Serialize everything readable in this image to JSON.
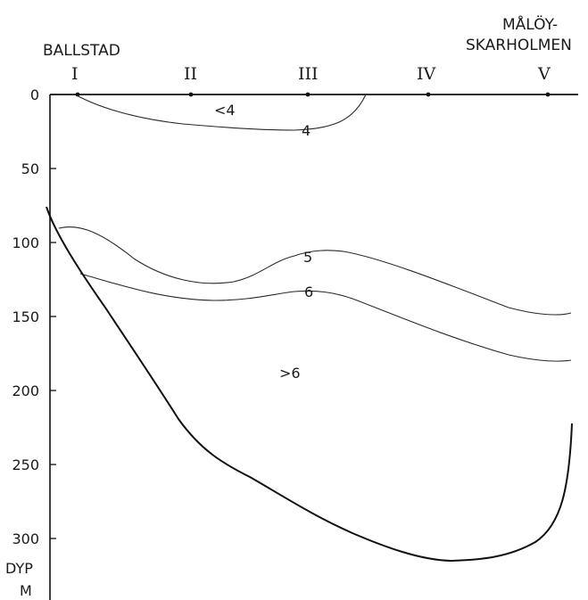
{
  "locations": {
    "left": "BALLSTAD",
    "right_line1": "MÅLÖY-",
    "right_line2": "SKARHOLMEN"
  },
  "stations": [
    "I",
    "II",
    "III",
    "IV",
    "V"
  ],
  "depth_axis": {
    "ticks": [
      "0",
      "50",
      "100",
      "150",
      "200",
      "250",
      "300"
    ],
    "label_line1": "DYP",
    "label_line2": "M"
  },
  "contour_labels": {
    "lt4": "<4",
    "c4": "4",
    "c5": "5",
    "c6": "6",
    "gt6": ">6"
  }
}
